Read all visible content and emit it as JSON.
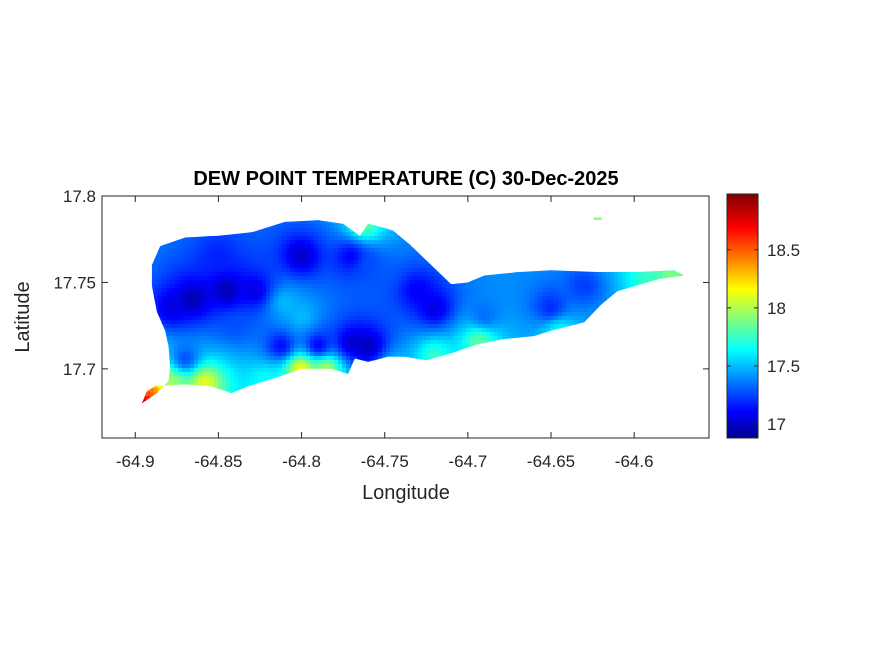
{
  "chart_data": {
    "type": "heatmap",
    "title": "DEW POINT TEMPERATURE (C) 30-Dec-2025",
    "xlabel": "Longitude",
    "ylabel": "Latitude",
    "xlim": [
      -64.92,
      -64.555
    ],
    "ylim": [
      17.66,
      17.8
    ],
    "xticks": [
      -64.9,
      -64.85,
      -64.8,
      -64.75,
      -64.7,
      -64.65,
      -64.6
    ],
    "xtick_labels": [
      "-64.9",
      "-64.85",
      "-64.8",
      "-64.75",
      "-64.7",
      "-64.65",
      "-64.6"
    ],
    "yticks": [
      17.7,
      17.75,
      17.8
    ],
    "ytick_labels": [
      "17.7",
      "17.75",
      "17.8"
    ],
    "colorbar": {
      "colormap": "jet",
      "clim": [
        16.88,
        18.98
      ],
      "ticks": [
        17,
        17.5,
        18,
        18.5
      ],
      "tick_labels": [
        "17",
        "17.5",
        "18",
        "18.5"
      ]
    },
    "background_value": 17.45,
    "island_outline": [
      [
        -64.896,
        17.68
      ],
      [
        -64.893,
        17.687
      ],
      [
        -64.888,
        17.69
      ],
      [
        -64.87,
        17.691
      ],
      [
        -64.855,
        17.69
      ],
      [
        -64.842,
        17.686
      ],
      [
        -64.832,
        17.69
      ],
      [
        -64.815,
        17.695
      ],
      [
        -64.8,
        17.7
      ],
      [
        -64.782,
        17.7
      ],
      [
        -64.772,
        17.697
      ],
      [
        -64.768,
        17.706
      ],
      [
        -64.76,
        17.704
      ],
      [
        -64.748,
        17.707
      ],
      [
        -64.738,
        17.707
      ],
      [
        -64.725,
        17.705
      ],
      [
        -64.71,
        17.709
      ],
      [
        -64.695,
        17.714
      ],
      [
        -64.68,
        17.717
      ],
      [
        -64.66,
        17.719
      ],
      [
        -64.65,
        17.722
      ],
      [
        -64.63,
        17.727
      ],
      [
        -64.62,
        17.737
      ],
      [
        -64.61,
        17.745
      ],
      [
        -64.585,
        17.752
      ],
      [
        -64.57,
        17.754
      ],
      [
        -64.576,
        17.757
      ],
      [
        -64.6,
        17.756
      ],
      [
        -64.62,
        17.756
      ],
      [
        -64.65,
        17.757
      ],
      [
        -64.67,
        17.756
      ],
      [
        -64.69,
        17.754
      ],
      [
        -64.7,
        17.75
      ],
      [
        -64.71,
        17.749
      ],
      [
        -64.722,
        17.76
      ],
      [
        -64.735,
        17.772
      ],
      [
        -64.745,
        17.78
      ],
      [
        -64.752,
        17.782
      ],
      [
        -64.76,
        17.784
      ],
      [
        -64.765,
        17.777
      ],
      [
        -64.775,
        17.784
      ],
      [
        -64.79,
        17.786
      ],
      [
        -64.81,
        17.785
      ],
      [
        -64.83,
        17.779
      ],
      [
        -64.85,
        17.777
      ],
      [
        -64.87,
        17.776
      ],
      [
        -64.885,
        17.771
      ],
      [
        -64.89,
        17.76
      ],
      [
        -64.89,
        17.748
      ],
      [
        -64.887,
        17.733
      ],
      [
        -64.882,
        17.722
      ],
      [
        -64.88,
        17.713
      ],
      [
        -64.879,
        17.7
      ],
      [
        -64.88,
        17.693
      ],
      [
        -64.887,
        17.686
      ],
      [
        -64.896,
        17.68
      ]
    ],
    "islet": [
      -64.622,
      17.787
    ],
    "stations": [
      [
        -64.845,
        17.745,
        16.95
      ],
      [
        -64.865,
        17.74,
        16.95
      ],
      [
        -64.878,
        17.735,
        17.05
      ],
      [
        -64.828,
        17.745,
        17.05
      ],
      [
        -64.8,
        17.765,
        17.0
      ],
      [
        -64.76,
        17.713,
        16.95
      ],
      [
        -64.79,
        17.713,
        17.05
      ],
      [
        -64.812,
        17.713,
        17.1
      ],
      [
        -64.77,
        17.715,
        17.0
      ],
      [
        -64.77,
        17.765,
        17.1
      ],
      [
        -64.72,
        17.735,
        17.05
      ],
      [
        -64.73,
        17.745,
        17.1
      ],
      [
        -64.65,
        17.735,
        17.2
      ],
      [
        -64.63,
        17.748,
        17.25
      ],
      [
        -64.69,
        17.73,
        17.35
      ],
      [
        -64.84,
        17.725,
        17.3
      ],
      [
        -64.8,
        17.73,
        17.55
      ],
      [
        -64.81,
        17.738,
        17.55
      ],
      [
        -64.87,
        17.705,
        17.25
      ],
      [
        -64.76,
        17.76,
        17.3
      ],
      [
        -64.85,
        17.765,
        17.2
      ],
      [
        -64.895,
        17.681,
        18.95
      ],
      [
        -64.891,
        17.686,
        18.5
      ],
      [
        -64.858,
        17.692,
        18.2
      ],
      [
        -64.878,
        17.692,
        18.0
      ],
      [
        -64.8,
        17.7,
        18.3
      ],
      [
        -64.785,
        17.7,
        18.1
      ],
      [
        -64.822,
        17.693,
        17.7
      ],
      [
        -64.72,
        17.707,
        17.8
      ],
      [
        -64.693,
        17.716,
        17.9
      ],
      [
        -64.762,
        17.783,
        17.9
      ],
      [
        -64.578,
        17.755,
        17.95
      ],
      [
        -64.59,
        17.753,
        17.8
      ],
      [
        -64.645,
        17.722,
        17.7
      ],
      [
        -64.622,
        17.787,
        17.95
      ],
      [
        -64.745,
        17.7,
        17.6
      ]
    ]
  }
}
